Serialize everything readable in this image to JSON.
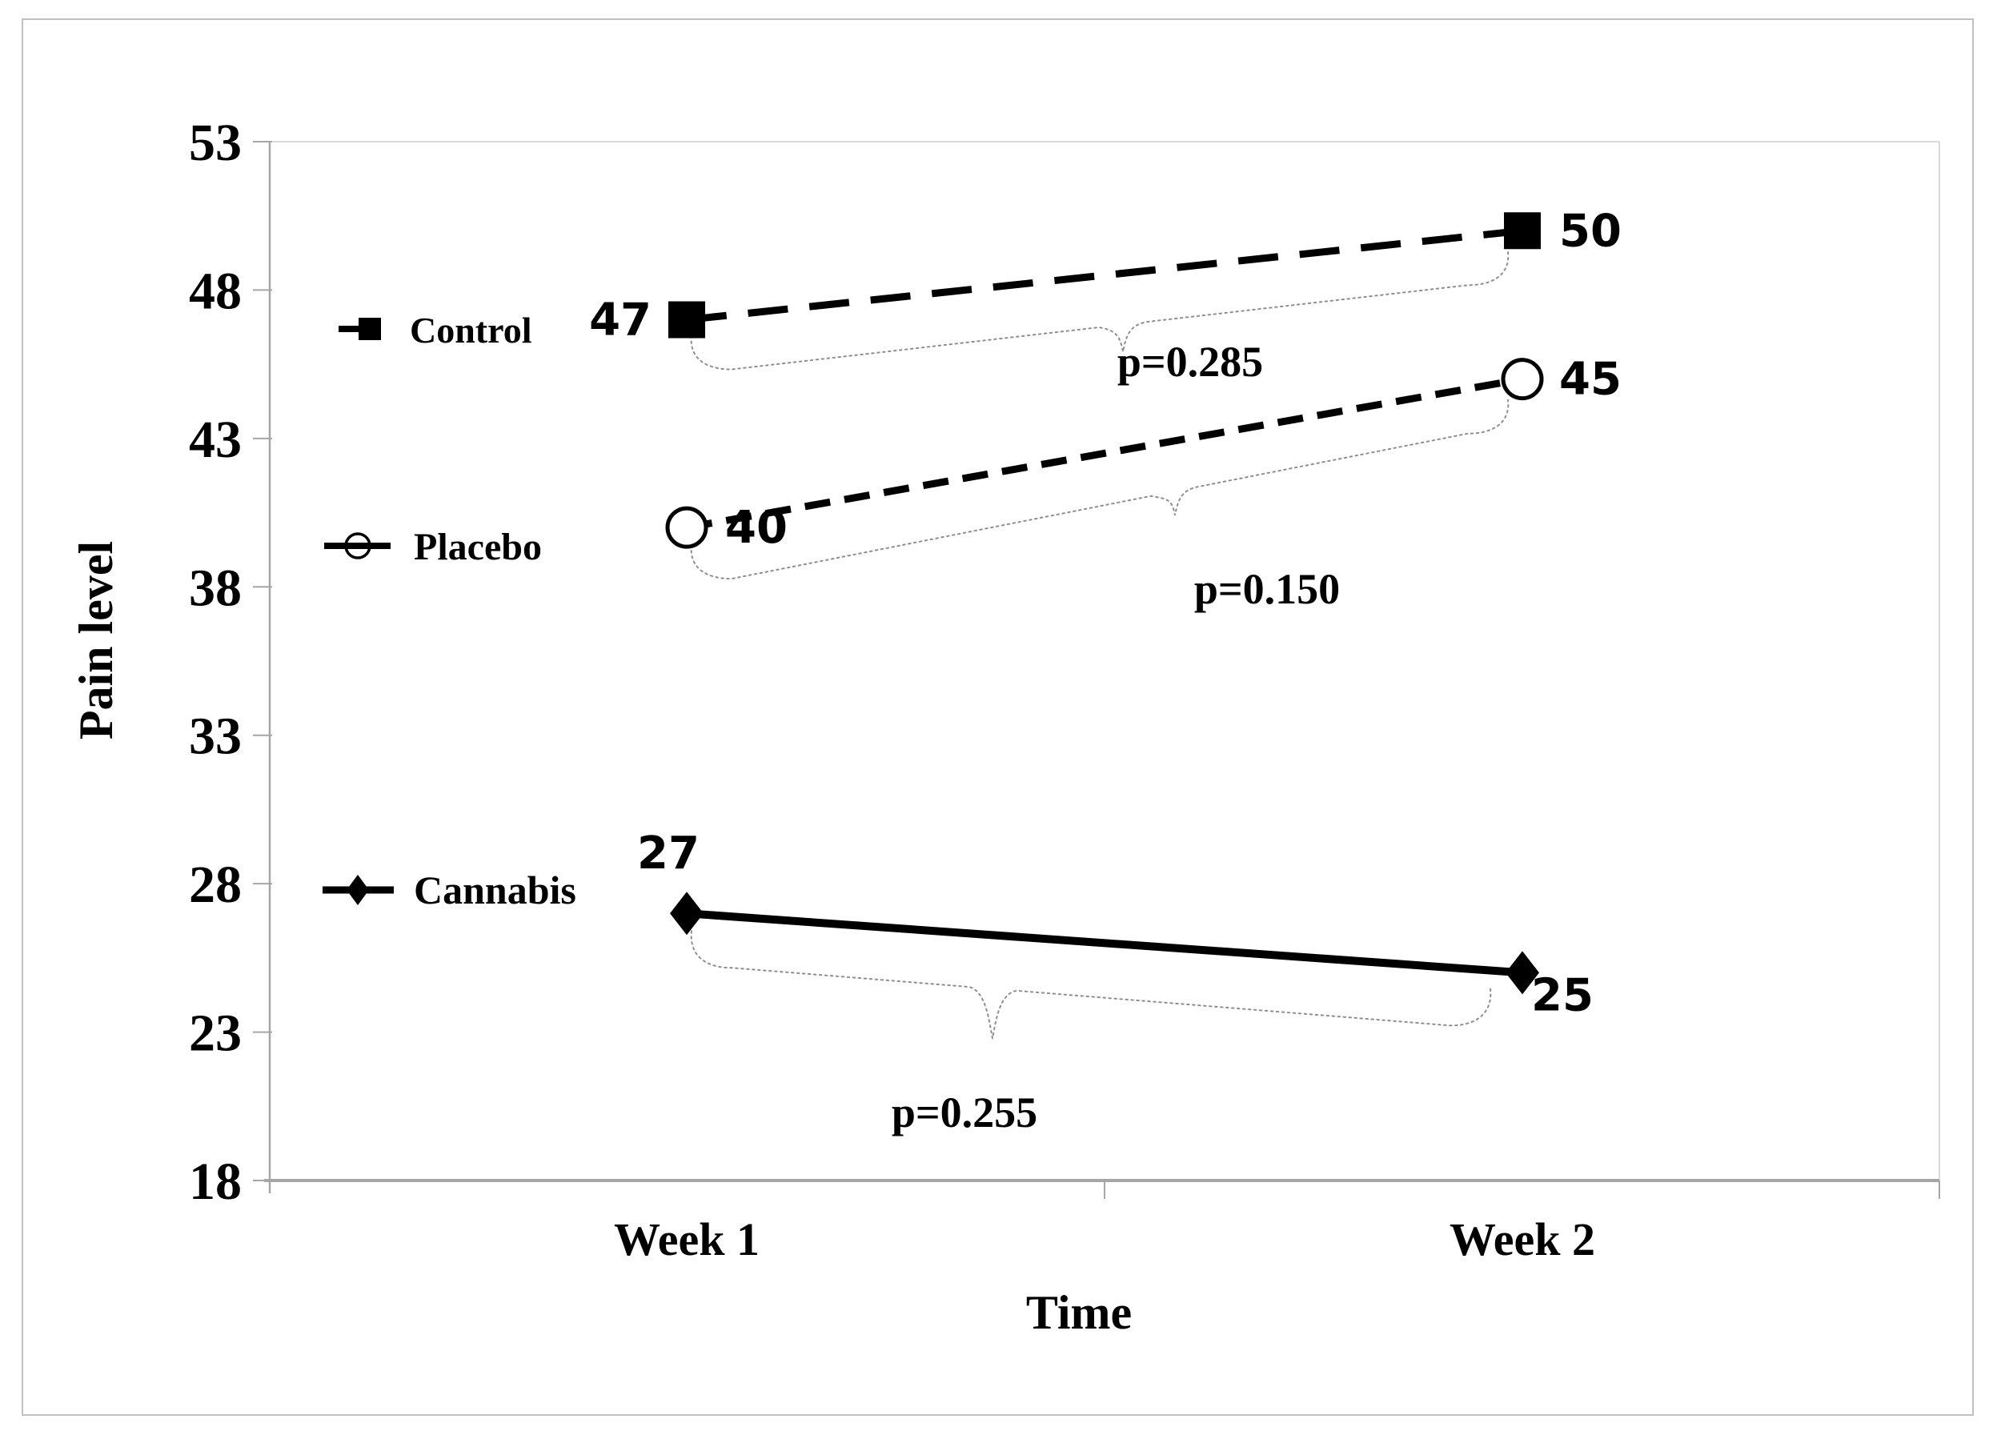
{
  "chart_data": {
    "type": "line",
    "title": "",
    "xlabel": "Time",
    "ylabel": "Pain level",
    "categories": [
      "Week 1",
      "Week 2"
    ],
    "ylim": [
      18,
      53
    ],
    "yticks": [
      53,
      48,
      43,
      38,
      33,
      28,
      23,
      18
    ],
    "grid": false,
    "legend_position": "inside-left",
    "series": [
      {
        "name": "Control",
        "values": [
          47,
          50
        ],
        "data_labels": [
          "47",
          "50"
        ],
        "marker": "filled-square",
        "line_style": "long-dash",
        "line_color": "#000000",
        "p_value_label": "p=0.285"
      },
      {
        "name": "Placebo",
        "values": [
          40,
          45
        ],
        "data_labels": [
          "40",
          "45"
        ],
        "marker": "open-circle",
        "line_style": "dash",
        "line_color": "#000000",
        "p_value_label": "p=0.150"
      },
      {
        "name": "Cannabis",
        "values": [
          27,
          25
        ],
        "data_labels": [
          "27",
          "25"
        ],
        "marker": "filled-diamond",
        "line_style": "solid",
        "line_color": "#000000",
        "p_value_label": "p=0.255"
      }
    ]
  },
  "colors": {
    "background": "#ffffff",
    "text": "#000000",
    "axis_line": "#a6a6a6",
    "plot_border": "#d9d9d9",
    "figure_border": "#c0c0c0",
    "brace": "#8f8f8f",
    "series_color": "#000000"
  }
}
